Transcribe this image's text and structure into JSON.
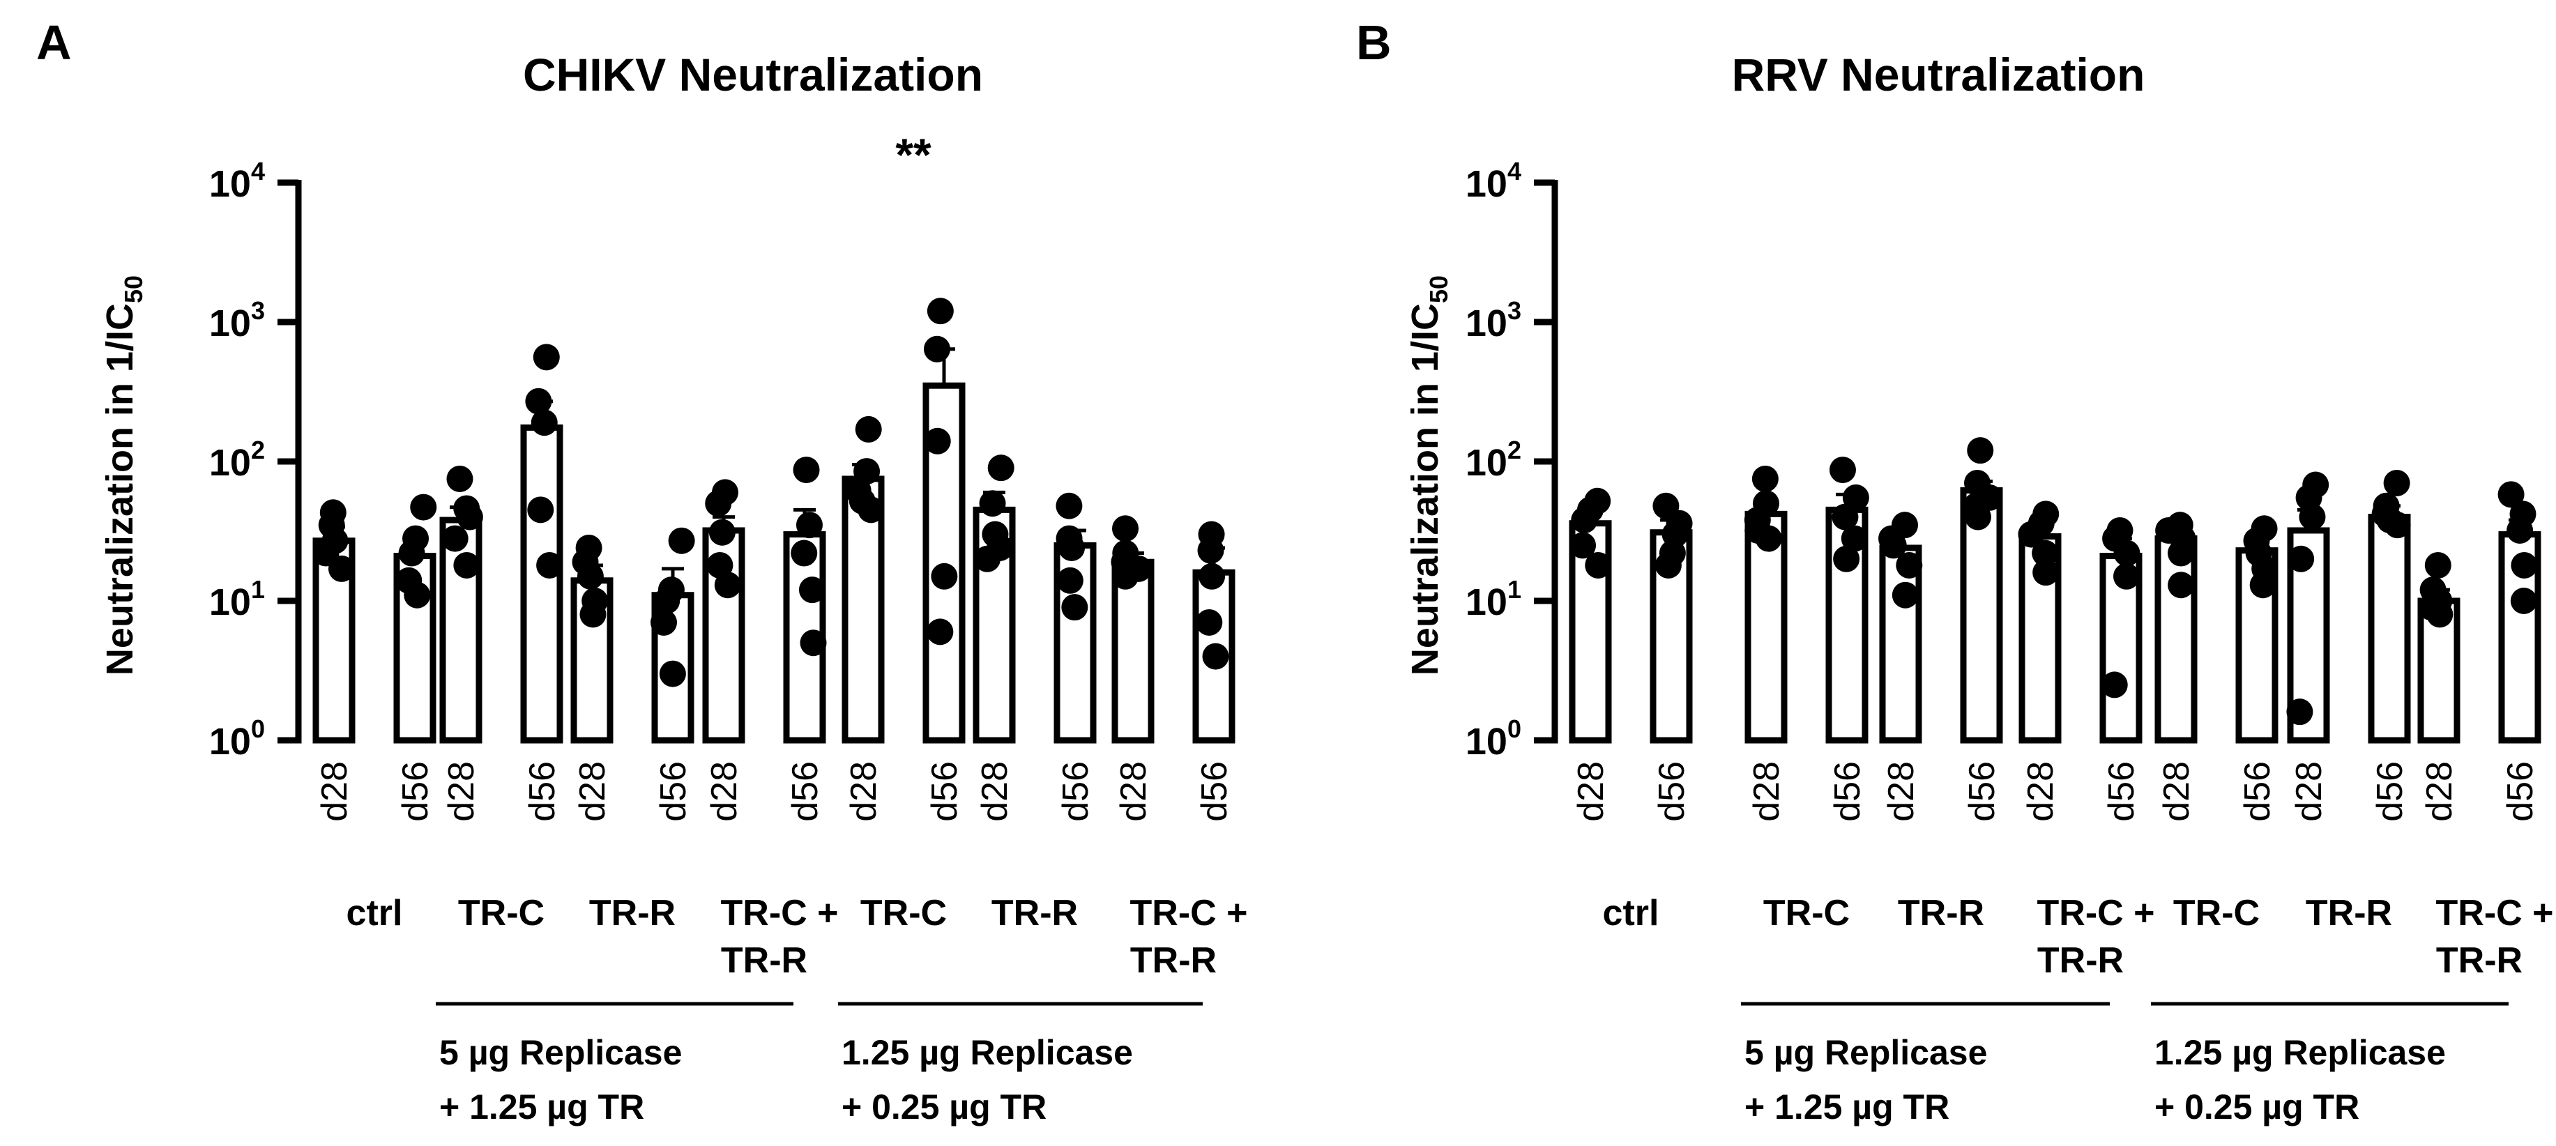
{
  "chart_data": [
    {
      "panel_label": "A",
      "type": "bar",
      "title": "CHIKV Neutralization",
      "ylabel_main": "Neutralization in 1/IC",
      "ylabel_sub": "50",
      "yscale": "log",
      "ylim": [
        1,
        10000
      ],
      "ytick_values": [
        1,
        10,
        100,
        1000,
        10000
      ],
      "ytick_base": "10",
      "ytick_exponents": [
        "0",
        "1",
        "2",
        "3",
        "4"
      ],
      "significance": {
        "group_index": 4,
        "text": "**"
      },
      "groups": [
        {
          "label": "ctrl",
          "label2": "",
          "bars": [
            {
              "timepoint": "d28",
              "mean": 27,
              "sem_hi": 34,
              "points": [
                17,
                22,
                27,
                35,
                43
              ]
            },
            {
              "timepoint": "d56",
              "mean": 21,
              "sem_hi": 28,
              "points": [
                11,
                14,
                22,
                28,
                47
              ]
            }
          ]
        },
        {
          "label": "TR-C",
          "label2": "",
          "bars": [
            {
              "timepoint": "d28",
              "mean": 38,
              "sem_hi": 47,
              "points": [
                18,
                28,
                40,
                46,
                75
              ]
            },
            {
              "timepoint": "d56",
              "mean": 175,
              "sem_hi": 270,
              "points": [
                18,
                45,
                190,
                270,
                560
              ]
            }
          ]
        },
        {
          "label": "TR-R",
          "label2": "",
          "bars": [
            {
              "timepoint": "d28",
              "mean": 14,
              "sem_hi": 18,
              "points": [
                8,
                10,
                15,
                19,
                24
              ]
            },
            {
              "timepoint": "d56",
              "mean": 11,
              "sem_hi": 17,
              "points": [
                3,
                7,
                10,
                12,
                27
              ]
            }
          ]
        },
        {
          "label": "TR-C +",
          "label2": "TR-R",
          "bars": [
            {
              "timepoint": "d28",
              "mean": 32,
              "sem_hi": 40,
              "points": [
                13,
                18,
                31,
                50,
                60
              ]
            },
            {
              "timepoint": "d56",
              "mean": 30,
              "sem_hi": 45,
              "points": [
                5,
                12,
                22,
                35,
                87
              ]
            }
          ]
        },
        {
          "label": "TR-C",
          "label2": "",
          "bars": [
            {
              "timepoint": "d28",
              "mean": 75,
              "sem_hi": 95,
              "points": [
                45,
                52,
                62,
                85,
                170
              ]
            },
            {
              "timepoint": "d56",
              "mean": 350,
              "sem_hi": 640,
              "points": [
                6,
                15,
                140,
                640,
                1200
              ]
            }
          ]
        },
        {
          "label": "TR-R",
          "label2": "",
          "bars": [
            {
              "timepoint": "d28",
              "mean": 45,
              "sem_hi": 60,
              "points": [
                20,
                24,
                30,
                50,
                90
              ]
            },
            {
              "timepoint": "d56",
              "mean": 25,
              "sem_hi": 32,
              "points": [
                9,
                14,
                24,
                28,
                48
              ]
            }
          ]
        },
        {
          "label": "TR-C +",
          "label2": "TR-R",
          "bars": [
            {
              "timepoint": "d28",
              "mean": 19,
              "sem_hi": 22,
              "points": [
                15,
                17,
                19,
                22,
                33
              ]
            },
            {
              "timepoint": "d56",
              "mean": 16,
              "sem_hi": 24,
              "points": [
                4,
                7,
                15,
                23,
                30
              ]
            }
          ]
        }
      ],
      "brackets": [
        {
          "from_group": 1,
          "to_group": 3,
          "line1": "5 µg Replicase",
          "line2": "+ 1.25 µg TR"
        },
        {
          "from_group": 4,
          "to_group": 6,
          "line1": "1.25 µg Replicase",
          "line2": "+ 0.25 µg TR"
        }
      ]
    },
    {
      "panel_label": "B",
      "type": "bar",
      "title": "RRV Neutralization",
      "ylabel_main": "Neutralization in 1/IC",
      "ylabel_sub": "50",
      "yscale": "log",
      "ylim": [
        1,
        10000
      ],
      "ytick_values": [
        1,
        10,
        100,
        1000,
        10000
      ],
      "ytick_base": "10",
      "ytick_exponents": [
        "0",
        "1",
        "2",
        "3",
        "4"
      ],
      "significance": null,
      "groups": [
        {
          "label": "ctrl",
          "label2": "",
          "bars": [
            {
              "timepoint": "d28",
              "mean": 36,
              "sem_hi": 42,
              "points": [
                18,
                25,
                38,
                45,
                52
              ]
            },
            {
              "timepoint": "d56",
              "mean": 31,
              "sem_hi": 38,
              "points": [
                18,
                22,
                30,
                36,
                48
              ]
            }
          ]
        },
        {
          "label": "TR-C",
          "label2": "",
          "bars": [
            {
              "timepoint": "d28",
              "mean": 42,
              "sem_hi": 52,
              "points": [
                28,
                32,
                38,
                50,
                75
              ]
            },
            {
              "timepoint": "d56",
              "mean": 45,
              "sem_hi": 58,
              "points": [
                20,
                28,
                40,
                55,
                87
              ]
            }
          ]
        },
        {
          "label": "TR-R",
          "label2": "",
          "bars": [
            {
              "timepoint": "d28",
              "mean": 24,
              "sem_hi": 30,
              "points": [
                11,
                18,
                25,
                28,
                35
              ]
            },
            {
              "timepoint": "d56",
              "mean": 62,
              "sem_hi": 72,
              "points": [
                40,
                48,
                55,
                70,
                120
              ]
            }
          ]
        },
        {
          "label": "TR-C +",
          "label2": "TR-R",
          "bars": [
            {
              "timepoint": "d28",
              "mean": 29,
              "sem_hi": 35,
              "points": [
                16,
                22,
                30,
                36,
                42
              ]
            },
            {
              "timepoint": "d56",
              "mean": 21,
              "sem_hi": 28,
              "points": [
                2.5,
                15,
                22,
                28,
                32
              ]
            }
          ]
        },
        {
          "label": "TR-C",
          "label2": "",
          "bars": [
            {
              "timepoint": "d28",
              "mean": 28,
              "sem_hi": 32,
              "points": [
                13,
                22,
                28,
                32,
                35
              ]
            },
            {
              "timepoint": "d56",
              "mean": 23,
              "sem_hi": 28,
              "points": [
                13,
                17,
                22,
                27,
                33
              ]
            }
          ]
        },
        {
          "label": "TR-R",
          "label2": "",
          "bars": [
            {
              "timepoint": "d28",
              "mean": 32,
              "sem_hi": 45,
              "points": [
                1.6,
                20,
                40,
                55,
                68
              ]
            },
            {
              "timepoint": "d56",
              "mean": 40,
              "sem_hi": 48,
              "points": [
                35,
                38,
                42,
                48,
                70
              ]
            }
          ]
        },
        {
          "label": "TR-C +",
          "label2": "TR-R",
          "bars": [
            {
              "timepoint": "d28",
              "mean": 10,
              "sem_hi": 12,
              "points": [
                8,
                9,
                10,
                12,
                18
              ]
            },
            {
              "timepoint": "d56",
              "mean": 30,
              "sem_hi": 38,
              "points": [
                10,
                18,
                32,
                42,
                58
              ]
            }
          ]
        }
      ],
      "brackets": [
        {
          "from_group": 1,
          "to_group": 3,
          "line1": "5 µg Replicase",
          "line2": "+ 1.25 µg TR"
        },
        {
          "from_group": 4,
          "to_group": 6,
          "line1": "1.25 µg Replicase",
          "line2": "+ 0.25 µg TR"
        }
      ]
    }
  ]
}
